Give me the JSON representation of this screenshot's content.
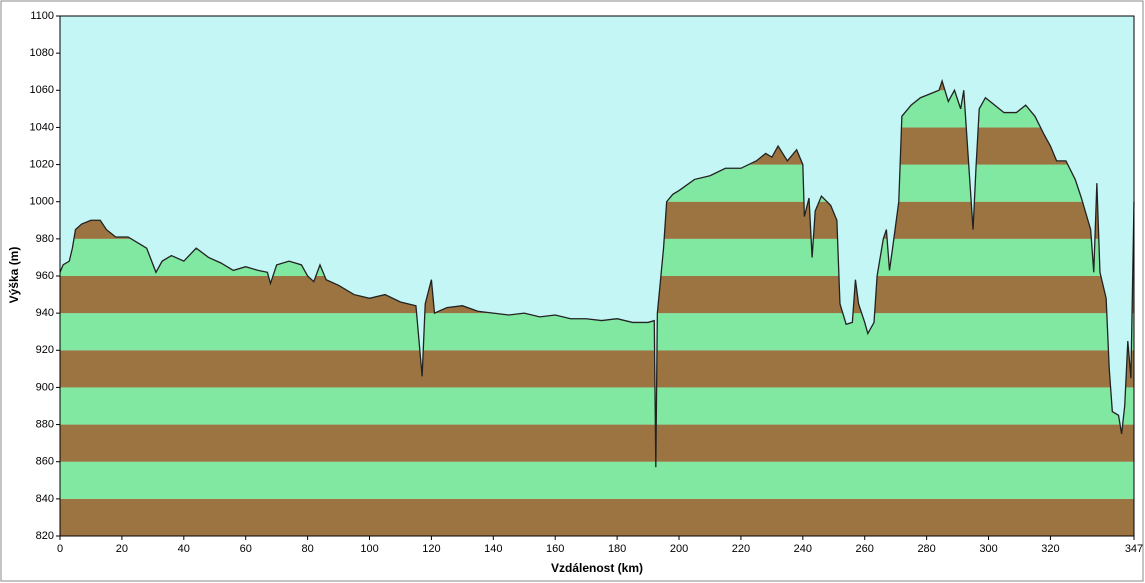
{
  "chart_data": {
    "type": "area",
    "xlabel": "Vzdálenost  (km)",
    "ylabel": "Výška (m)",
    "x": [
      0,
      1,
      3,
      4,
      5,
      7,
      10,
      13,
      15,
      18,
      22,
      25,
      28,
      31,
      33,
      36,
      40,
      44,
      48,
      52,
      56,
      60,
      64,
      67,
      68,
      70,
      74,
      78,
      80,
      82,
      84,
      86,
      90,
      95,
      100,
      105,
      110,
      115,
      117,
      118,
      120,
      121,
      125,
      130,
      135,
      140,
      145,
      150,
      155,
      160,
      165,
      170,
      175,
      180,
      185,
      190,
      192,
      192.5,
      193,
      195,
      196,
      198,
      200,
      205,
      210,
      215,
      220,
      225,
      228,
      230,
      232,
      235,
      238,
      240,
      240.5,
      242,
      243,
      244,
      246,
      249,
      251,
      252,
      254,
      256,
      257,
      258,
      260,
      261,
      263,
      264,
      266,
      267,
      268,
      269,
      271,
      272,
      275,
      278,
      281,
      284,
      285,
      287,
      289,
      291,
      292,
      294,
      295,
      296,
      297,
      299,
      302,
      305,
      309,
      312,
      315,
      318,
      320,
      322,
      325,
      328,
      330,
      333,
      334,
      335,
      336,
      338,
      339,
      340,
      342,
      343,
      344,
      345,
      346,
      347
    ],
    "values": [
      962,
      966,
      968,
      975,
      985,
      988,
      990,
      990,
      985,
      981,
      981,
      978,
      975,
      962,
      968,
      971,
      968,
      975,
      970,
      967,
      963,
      965,
      963,
      962,
      956,
      966,
      968,
      966,
      960,
      957,
      966,
      958,
      955,
      950,
      948,
      950,
      946,
      944,
      906,
      945,
      958,
      940,
      943,
      944,
      941,
      940,
      939,
      940,
      938,
      939,
      937,
      937,
      936,
      937,
      935,
      935,
      936,
      857,
      940,
      975,
      1000,
      1004,
      1006,
      1012,
      1014,
      1018,
      1018,
      1022,
      1026,
      1024,
      1030,
      1022,
      1028,
      1020,
      992,
      1002,
      970,
      995,
      1003,
      998,
      990,
      945,
      934,
      935,
      958,
      945,
      935,
      929,
      935,
      960,
      980,
      985,
      963,
      975,
      1000,
      1046,
      1052,
      1056,
      1058,
      1060,
      1065,
      1054,
      1060,
      1050,
      1060,
      1010,
      985,
      1020,
      1050,
      1056,
      1052,
      1048,
      1048,
      1052,
      1046,
      1036,
      1030,
      1022,
      1022,
      1012,
      1002,
      985,
      962,
      1010,
      962,
      948,
      910,
      887,
      885,
      875,
      890,
      925,
      905,
      1000
    ],
    "xlim": [
      0,
      347
    ],
    "xticks": [
      0,
      20,
      40,
      60,
      80,
      100,
      120,
      140,
      160,
      180,
      200,
      220,
      240,
      260,
      280,
      300,
      320,
      347
    ],
    "ylim": [
      820,
      1100
    ],
    "yticks": [
      820,
      840,
      860,
      880,
      900,
      920,
      940,
      960,
      980,
      1000,
      1020,
      1040,
      1060,
      1080,
      1100
    ],
    "color": "#222222",
    "background": "#c4f6f6",
    "band_colors": [
      "#9b7441",
      "#80e8a0"
    ]
  }
}
